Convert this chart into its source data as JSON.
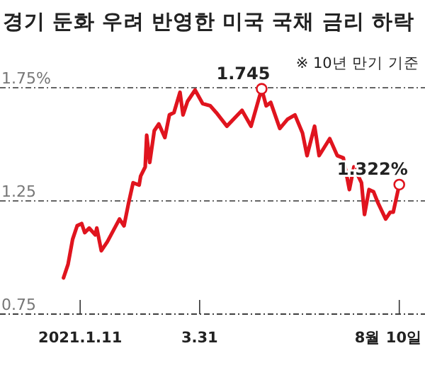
{
  "chart_data": {
    "type": "line",
    "title": "경기 둔화 우려 반영한 미국 국채 금리 하락",
    "annotations": [
      "※ 10년 만기 기준",
      {
        "text": "1.745",
        "x": "2021-05-11",
        "y": 1.745
      },
      {
        "text": "1.322%",
        "x": "2021-08-10",
        "y": 1.322
      }
    ],
    "series": [
      {
        "color": "#e0141e",
        "x": [
          "2020-12-31",
          "2021-01-03",
          "2021-01-06",
          "2021-01-09",
          "2021-01-12",
          "2021-01-14",
          "2021-01-17",
          "2021-01-21",
          "2021-01-22",
          "2021-01-25",
          "2021-01-29",
          "2021-02-02",
          "2021-02-06",
          "2021-02-09",
          "2021-02-12",
          "2021-02-15",
          "2021-02-19",
          "2021-02-20",
          "2021-02-23",
          "2021-02-24",
          "2021-02-26",
          "2021-03-01",
          "2021-03-04",
          "2021-03-08",
          "2021-03-11",
          "2021-03-14",
          "2021-03-18",
          "2021-03-20",
          "2021-03-23",
          "2021-03-28",
          "2021-04-02",
          "2021-04-07",
          "2021-04-11",
          "2021-04-18",
          "2021-04-28",
          "2021-05-04",
          "2021-05-11",
          "2021-05-14",
          "2021-05-17",
          "2021-05-23",
          "2021-05-28",
          "2021-06-02",
          "2021-06-07",
          "2021-06-10",
          "2021-06-15",
          "2021-06-18",
          "2021-06-25",
          "2021-06-30",
          "2021-07-04",
          "2021-07-08",
          "2021-07-11",
          "2021-07-16",
          "2021-07-18",
          "2021-07-21",
          "2021-07-24",
          "2021-07-27",
          "2021-08-01",
          "2021-08-04",
          "2021-08-06",
          "2021-08-10"
        ],
        "values": [
          0.91,
          0.97,
          1.08,
          1.14,
          1.15,
          1.11,
          1.13,
          1.1,
          1.13,
          1.03,
          1.07,
          1.12,
          1.17,
          1.14,
          1.24,
          1.33,
          1.32,
          1.36,
          1.4,
          1.54,
          1.42,
          1.56,
          1.59,
          1.53,
          1.63,
          1.64,
          1.73,
          1.63,
          1.69,
          1.74,
          1.68,
          1.67,
          1.64,
          1.58,
          1.65,
          1.58,
          1.745,
          1.67,
          1.685,
          1.57,
          1.61,
          1.63,
          1.55,
          1.45,
          1.58,
          1.45,
          1.525,
          1.45,
          1.44,
          1.3,
          1.4,
          1.33,
          1.19,
          1.3,
          1.29,
          1.24,
          1.17,
          1.2,
          1.2,
          1.322
        ]
      }
    ],
    "xlim": [
      "2020-11-19",
      "2021-08-27"
    ],
    "xticks": [
      {
        "value": "2021-01-11",
        "label": "2021.1.11"
      },
      {
        "value": "2021-03-31",
        "label": "3.31"
      },
      {
        "value": "2021-08-10",
        "label": "8월 10일"
      }
    ],
    "ylim": [
      0.75,
      1.75
    ],
    "yticks": [
      0.75,
      1.25,
      {
        "value": 1.75,
        "label": "1.75%"
      }
    ],
    "grid": "y"
  }
}
